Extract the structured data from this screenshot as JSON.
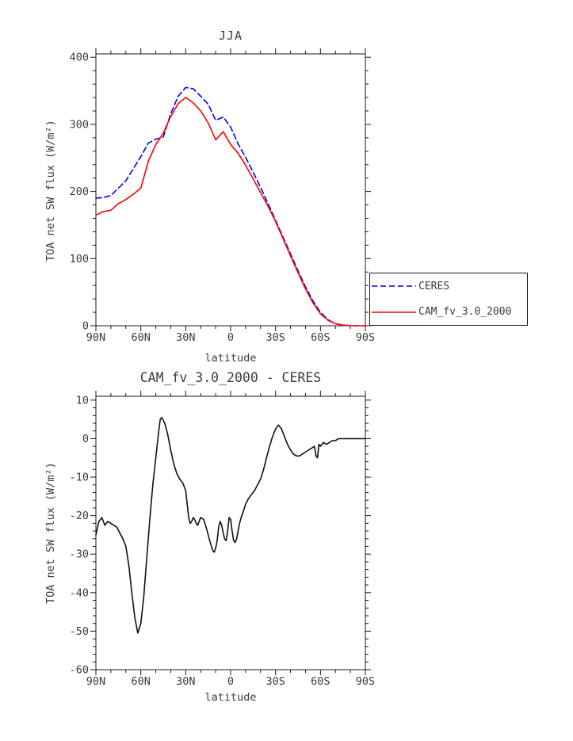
{
  "page": {
    "background": "#ffffff",
    "text_color": "#3c3c3c",
    "axis_color": "#1a1a1a"
  },
  "chart_data": [
    {
      "id": "top",
      "type": "line",
      "title": "JJA",
      "xlabel": "latitude",
      "ylabel": "TOA net SW flux (W/m²)",
      "xlim": [
        90,
        -90
      ],
      "ylim": [
        0,
        405
      ],
      "grid": false,
      "legend_position": "outside-right-bottom",
      "xticks": [
        {
          "v": 90,
          "label": "90N"
        },
        {
          "v": 60,
          "label": "60N"
        },
        {
          "v": 30,
          "label": "30N"
        },
        {
          "v": 0,
          "label": "0"
        },
        {
          "v": -30,
          "label": "30S"
        },
        {
          "v": -60,
          "label": "60S"
        },
        {
          "v": -90,
          "label": "90S"
        }
      ],
      "x_minor_step": 10,
      "yticks": [
        {
          "v": 0,
          "label": "0"
        },
        {
          "v": 100,
          "label": "100"
        },
        {
          "v": 200,
          "label": "200"
        },
        {
          "v": 300,
          "label": "300"
        },
        {
          "v": 400,
          "label": "400"
        }
      ],
      "y_minor_step": 20,
      "x": [
        90,
        85,
        80,
        75,
        70,
        65,
        60,
        55,
        50,
        45,
        40,
        35,
        30,
        25,
        20,
        15,
        10,
        5,
        0,
        -5,
        -10,
        -15,
        -20,
        -25,
        -30,
        -35,
        -40,
        -45,
        -50,
        -55,
        -60,
        -65,
        -70,
        -75,
        -80,
        -85,
        -90
      ],
      "series": [
        {
          "name": "CERES",
          "color": "#0000ff",
          "style": "dashed",
          "dash": "7,4",
          "width": 1.6,
          "values": [
            190,
            191,
            194,
            205,
            216,
            234,
            252,
            272,
            278,
            281,
            316,
            342,
            355,
            353,
            342,
            330,
            306,
            311,
            296,
            271,
            251,
            229,
            206,
            182,
            157,
            132,
            107,
            82,
            58,
            37,
            20,
            9,
            3,
            1,
            0,
            0,
            0
          ]
        },
        {
          "name": "CAM_fv_3.0_2000",
          "color": "#ff0000",
          "style": "solid",
          "dash": "",
          "width": 1.6,
          "values": [
            165,
            170,
            172,
            182,
            188,
            196,
            205,
            245,
            270,
            287,
            312,
            331,
            340,
            332,
            320,
            302,
            277,
            289,
            270,
            257,
            239,
            219,
            198,
            178,
            155,
            130,
            104,
            79,
            55,
            34,
            18,
            8,
            3,
            1,
            0,
            0,
            0
          ]
        }
      ]
    },
    {
      "id": "bottom",
      "type": "line",
      "title": "CAM_fv_3.0_2000 - CERES",
      "xlabel": "latitude",
      "ylabel": "TOA net SW flux (W/m²)",
      "xlim": [
        90,
        -90
      ],
      "ylim": [
        -60,
        11
      ],
      "grid": false,
      "legend_position": "none",
      "xticks": [
        {
          "v": 90,
          "label": "90N"
        },
        {
          "v": 60,
          "label": "60N"
        },
        {
          "v": 30,
          "label": "30N"
        },
        {
          "v": 0,
          "label": "0"
        },
        {
          "v": -30,
          "label": "30S"
        },
        {
          "v": -60,
          "label": "60S"
        },
        {
          "v": -90,
          "label": "90S"
        }
      ],
      "x_minor_step": 10,
      "yticks": [
        {
          "v": 10,
          "label": "10"
        },
        {
          "v": 0,
          "label": "0"
        },
        {
          "v": -10,
          "label": "-10"
        },
        {
          "v": -20,
          "label": "-20"
        },
        {
          "v": -30,
          "label": "-30"
        },
        {
          "v": -40,
          "label": "-40"
        },
        {
          "v": -50,
          "label": "-50"
        },
        {
          "v": -60,
          "label": "-60"
        }
      ],
      "y_minor_step": 2,
      "x": [
        90,
        88,
        86,
        84,
        82,
        80,
        78,
        76,
        74,
        72,
        70,
        68,
        66,
        64,
        62,
        60,
        58,
        56,
        54,
        52,
        50,
        48,
        47,
        46,
        44,
        42,
        40,
        38,
        36,
        34,
        32,
        30,
        29,
        28,
        27,
        26,
        25,
        24,
        23,
        22,
        21,
        20,
        18,
        16,
        14,
        12,
        11,
        10,
        9,
        8,
        7,
        6,
        5,
        4,
        3,
        2,
        1,
        0,
        -1,
        -2,
        -3,
        -4,
        -5,
        -6,
        -7,
        -8,
        -10,
        -12,
        -14,
        -16,
        -18,
        -20,
        -22,
        -24,
        -26,
        -28,
        -30,
        -32,
        -34,
        -36,
        -38,
        -40,
        -42,
        -44,
        -46,
        -48,
        -50,
        -52,
        -54,
        -56,
        -57,
        -58,
        -59,
        -60,
        -62,
        -64,
        -66,
        -68,
        -70,
        -72,
        -75,
        -80,
        -85,
        -90
      ],
      "series": [
        {
          "name": "CAM_fv_3.0_2000 - CERES",
          "color": "#111111",
          "style": "solid",
          "dash": "",
          "width": 1.6,
          "values": [
            -25,
            -21.5,
            -20.5,
            -22.5,
            -21.5,
            -22,
            -22.5,
            -23,
            -24.5,
            -26,
            -28,
            -33,
            -40,
            -46.5,
            -50.5,
            -48,
            -41,
            -31,
            -21,
            -12,
            -5,
            2,
            5,
            5.5,
            4,
            1,
            -3,
            -6.5,
            -9,
            -10.5,
            -11.5,
            -13.5,
            -17,
            -20.5,
            -22,
            -21.5,
            -20.5,
            -21,
            -22,
            -22.5,
            -21.5,
            -20.5,
            -21,
            -23.5,
            -26.5,
            -29,
            -29.5,
            -28.5,
            -26.5,
            -23,
            -21.5,
            -22.5,
            -24.5,
            -26,
            -26.5,
            -24,
            -20.5,
            -21,
            -24,
            -26.5,
            -27,
            -26,
            -24,
            -22,
            -20.5,
            -19.5,
            -17,
            -15.5,
            -14.5,
            -13.5,
            -12,
            -10.5,
            -8,
            -5,
            -2,
            0.5,
            2.5,
            3.5,
            2.5,
            0.5,
            -1.5,
            -3,
            -4,
            -4.5,
            -4.5,
            -4,
            -3.5,
            -3,
            -2.5,
            -2,
            -4.5,
            -5,
            -1.5,
            -2,
            -1,
            -1.5,
            -1,
            -0.5,
            -0.5,
            0,
            0,
            0,
            0,
            0
          ]
        }
      ]
    }
  ],
  "legend": {
    "entries": [
      {
        "label": "CERES"
      },
      {
        "label": "CAM_fv_3.0_2000"
      }
    ]
  }
}
